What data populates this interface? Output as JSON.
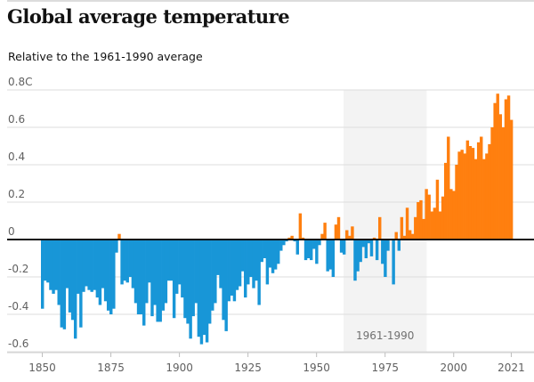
{
  "header": {
    "title": "Global average temperature",
    "subtitle": "Relative to the 1961-1990 average"
  },
  "colors": {
    "negative": "#1896d7",
    "positive": "#ff7f0f",
    "baseline": "#121212",
    "grid": "#dcdcdc",
    "band": "#f3f3f3"
  },
  "chart_data": {
    "type": "bar",
    "title": "Global average temperature",
    "subtitle": "Relative to the 1961-1990 average",
    "xlabel": "",
    "ylabel": "",
    "unit": "C",
    "ylim": [
      -0.6,
      0.8
    ],
    "xlim": [
      1850,
      2021
    ],
    "grid": true,
    "y_ticks": [
      {
        "value": 0.8,
        "label": "0.8C"
      },
      {
        "value": 0.6,
        "label": "0.6"
      },
      {
        "value": 0.4,
        "label": "0.4"
      },
      {
        "value": 0.2,
        "label": "0.2"
      },
      {
        "value": 0,
        "label": "0"
      },
      {
        "value": -0.2,
        "label": "-0.2"
      },
      {
        "value": -0.4,
        "label": "-0.4"
      },
      {
        "value": -0.6,
        "label": "-0.6"
      }
    ],
    "x_ticks": [
      {
        "value": 1850,
        "label": "1850"
      },
      {
        "value": 1875,
        "label": "1875"
      },
      {
        "value": 1900,
        "label": "1900"
      },
      {
        "value": 1925,
        "label": "1925"
      },
      {
        "value": 1950,
        "label": "1950"
      },
      {
        "value": 1975,
        "label": "1975"
      },
      {
        "value": 2000,
        "label": "2000"
      },
      {
        "value": 2021,
        "label": "2021"
      }
    ],
    "annotations": [
      {
        "type": "band",
        "x_start": 1961,
        "x_end": 1990,
        "label": "1961-1990"
      }
    ],
    "start_year": 1850,
    "values": [
      -0.37,
      -0.22,
      -0.23,
      -0.27,
      -0.29,
      -0.27,
      -0.35,
      -0.47,
      -0.48,
      -0.26,
      -0.39,
      -0.43,
      -0.53,
      -0.29,
      -0.47,
      -0.28,
      -0.25,
      -0.27,
      -0.28,
      -0.27,
      -0.31,
      -0.35,
      -0.26,
      -0.33,
      -0.38,
      -0.4,
      -0.37,
      -0.07,
      0.03,
      -0.24,
      -0.22,
      -0.23,
      -0.2,
      -0.26,
      -0.34,
      -0.4,
      -0.4,
      -0.46,
      -0.34,
      -0.23,
      -0.41,
      -0.35,
      -0.44,
      -0.44,
      -0.38,
      -0.34,
      -0.22,
      -0.22,
      -0.42,
      -0.29,
      -0.24,
      -0.31,
      -0.42,
      -0.45,
      -0.53,
      -0.41,
      -0.34,
      -0.52,
      -0.56,
      -0.51,
      -0.55,
      -0.45,
      -0.38,
      -0.34,
      -0.19,
      -0.26,
      -0.43,
      -0.49,
      -0.33,
      -0.3,
      -0.33,
      -0.27,
      -0.25,
      -0.17,
      -0.31,
      -0.24,
      -0.2,
      -0.26,
      -0.22,
      -0.35,
      -0.12,
      -0.1,
      -0.24,
      -0.15,
      -0.18,
      -0.16,
      -0.13,
      -0.06,
      -0.03,
      -0.01,
      0.01,
      0.02,
      -0.01,
      -0.08,
      0.14,
      0.01,
      -0.11,
      -0.1,
      -0.11,
      -0.05,
      -0.13,
      -0.03,
      0.03,
      0.09,
      -0.17,
      -0.16,
      -0.2,
      0.08,
      0.12,
      -0.07,
      -0.08,
      0.05,
      0.02,
      0.07,
      -0.22,
      -0.17,
      -0.12,
      -0.04,
      -0.1,
      -0.02,
      -0.09,
      0.01,
      -0.11,
      0.12,
      -0.13,
      -0.2,
      -0.06,
      0.0,
      -0.24,
      0.04,
      -0.06,
      0.12,
      0.02,
      0.17,
      0.05,
      0.03,
      0.12,
      0.2,
      0.21,
      0.11,
      0.27,
      0.24,
      0.15,
      0.17,
      0.32,
      0.15,
      0.23,
      0.41,
      0.55,
      0.27,
      0.26,
      0.4,
      0.47,
      0.48,
      0.46,
      0.53,
      0.5,
      0.49,
      0.43,
      0.52,
      0.55,
      0.43,
      0.46,
      0.51,
      0.6,
      0.73,
      0.78,
      0.67,
      0.6,
      0.75,
      0.77,
      0.64
    ]
  }
}
